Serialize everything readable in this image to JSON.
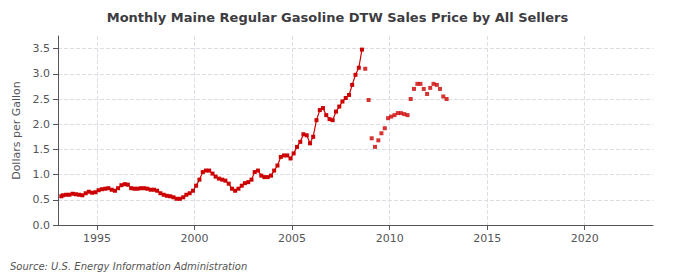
{
  "chart_data": {
    "type": "line",
    "title": "Monthly Maine Regular Gasoline DTW Sales Price by All Sellers",
    "ylabel": "Dollars per Gallon",
    "annotation": "Source: U.S. Energy Information Administration",
    "xlim": [
      1993.0,
      2023.5
    ],
    "xticks": [
      1995,
      2000,
      2005,
      2010,
      2015,
      2020
    ],
    "ylim": [
      0.0,
      3.75
    ],
    "yticks": [
      {
        "value": 0.0,
        "label": "0.0"
      },
      {
        "value": 0.5,
        "label": "0.5"
      },
      {
        "value": 1.0,
        "label": "1.0"
      },
      {
        "value": 1.5,
        "label": "1.5"
      },
      {
        "value": 2.0,
        "label": "2.0"
      },
      {
        "value": 2.5,
        "label": "2.5"
      },
      {
        "value": 3.0,
        "label": "3.0"
      },
      {
        "value": 3.5,
        "label": "3.5"
      }
    ],
    "grid": true,
    "series": [
      {
        "type": "line",
        "color": "#CC0000",
        "marker": "square",
        "x": [
          1993.17,
          1993.25,
          1993.42,
          1993.58,
          1993.75,
          1993.92,
          1994.08,
          1994.25,
          1994.42,
          1994.58,
          1994.75,
          1994.92,
          1995.08,
          1995.25,
          1995.42,
          1995.58,
          1995.75,
          1995.92,
          1996.08,
          1996.25,
          1996.42,
          1996.58,
          1996.75,
          1996.92,
          1997.08,
          1997.25,
          1997.42,
          1997.58,
          1997.75,
          1997.92,
          1998.08,
          1998.25,
          1998.42,
          1998.58,
          1998.75,
          1998.92,
          1999.08,
          1999.25,
          1999.42,
          1999.58,
          1999.75,
          1999.92,
          2000.08,
          2000.25,
          2000.42,
          2000.58,
          2000.75,
          2000.92,
          2001.08,
          2001.25,
          2001.42,
          2001.58,
          2001.75,
          2001.92,
          2002.08,
          2002.25,
          2002.42,
          2002.58,
          2002.75,
          2002.92,
          2003.08,
          2003.25,
          2003.42,
          2003.58,
          2003.75,
          2003.92,
          2004.08,
          2004.25,
          2004.42,
          2004.58,
          2004.75,
          2004.92,
          2005.08,
          2005.25,
          2005.42,
          2005.58,
          2005.75,
          2005.92,
          2006.08,
          2006.25,
          2006.42,
          2006.58,
          2006.75,
          2006.92,
          2007.08,
          2007.25,
          2007.42,
          2007.58,
          2007.75,
          2007.92,
          2008.08,
          2008.25,
          2008.42,
          2008.58
        ],
        "values": [
          0.57,
          0.59,
          0.6,
          0.6,
          0.62,
          0.61,
          0.6,
          0.59,
          0.63,
          0.66,
          0.64,
          0.65,
          0.69,
          0.71,
          0.72,
          0.73,
          0.7,
          0.68,
          0.73,
          0.79,
          0.81,
          0.8,
          0.73,
          0.72,
          0.72,
          0.73,
          0.73,
          0.72,
          0.7,
          0.7,
          0.68,
          0.63,
          0.6,
          0.58,
          0.57,
          0.55,
          0.52,
          0.52,
          0.55,
          0.6,
          0.63,
          0.68,
          0.78,
          0.9,
          1.05,
          1.08,
          1.08,
          1.02,
          0.96,
          0.92,
          0.9,
          0.88,
          0.82,
          0.72,
          0.68,
          0.72,
          0.78,
          0.83,
          0.85,
          0.9,
          1.05,
          1.08,
          0.98,
          0.95,
          0.95,
          0.98,
          1.08,
          1.18,
          1.35,
          1.38,
          1.38,
          1.32,
          1.42,
          1.55,
          1.65,
          1.8,
          1.78,
          1.62,
          1.75,
          2.08,
          2.28,
          2.32,
          2.18,
          2.1,
          2.08,
          2.25,
          2.35,
          2.45,
          2.52,
          2.58,
          2.78,
          2.98,
          3.12,
          3.48
        ]
      },
      {
        "type": "scatter",
        "color": "#CC0000",
        "marker": "square",
        "x": [
          2008.75,
          2008.92,
          2009.08,
          2009.25,
          2009.42,
          2009.58,
          2009.75,
          2009.92,
          2010.08,
          2010.25,
          2010.42,
          2010.58,
          2010.75,
          2010.92,
          2011.08,
          2011.25,
          2011.42,
          2011.58,
          2011.75,
          2011.92,
          2012.08,
          2012.25,
          2012.42,
          2012.58,
          2012.75,
          2012.92
        ],
        "values": [
          3.1,
          2.48,
          1.72,
          1.55,
          1.68,
          1.82,
          1.92,
          2.12,
          2.15,
          2.18,
          2.22,
          2.22,
          2.2,
          2.18,
          2.5,
          2.7,
          2.8,
          2.8,
          2.7,
          2.6,
          2.72,
          2.8,
          2.78,
          2.7,
          2.55,
          2.5
        ]
      }
    ]
  }
}
